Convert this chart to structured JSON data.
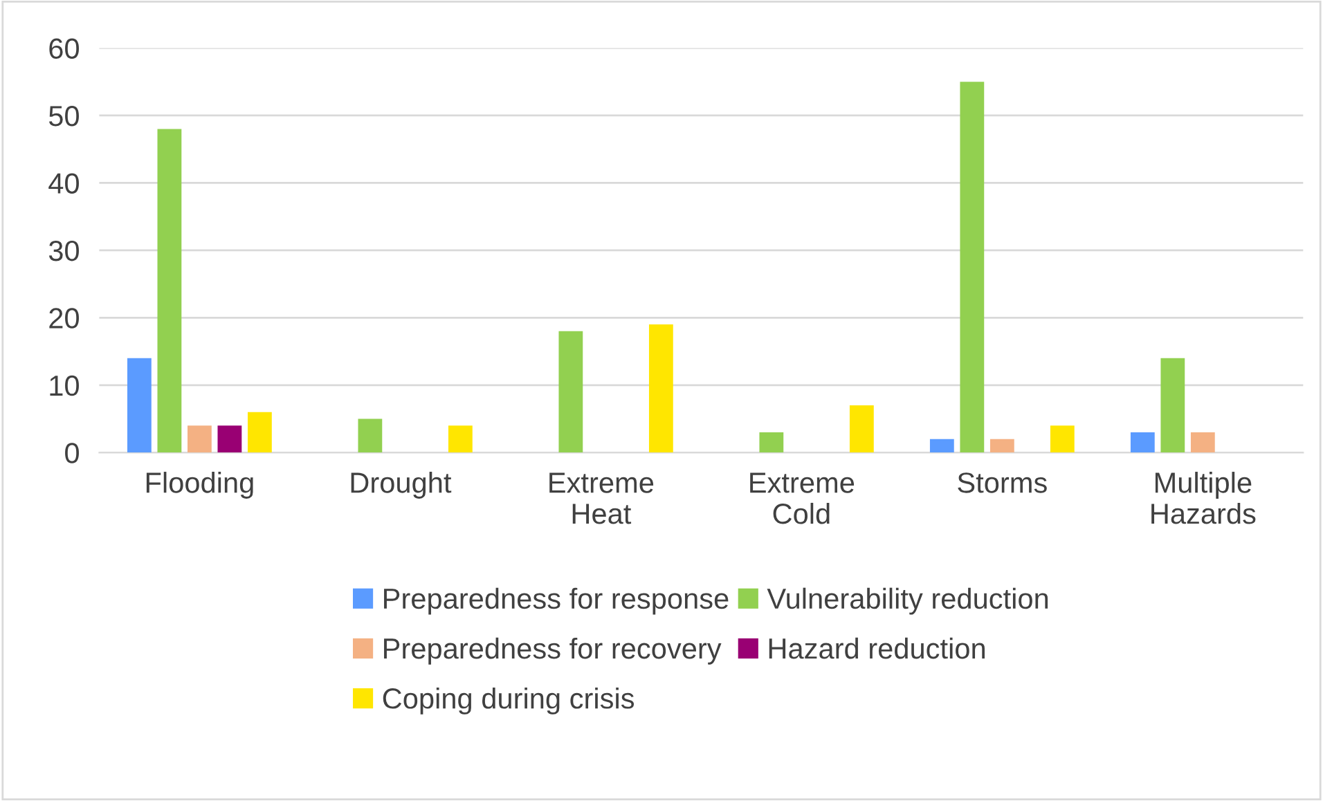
{
  "chart_data": {
    "type": "bar",
    "categories": [
      "Flooding",
      "Drought",
      "Extreme Heat",
      "Extreme Cold",
      "Storms",
      "Multiple Hazards"
    ],
    "series": [
      {
        "name": "Preparedness for response",
        "color": "#5b9bff",
        "values": [
          14,
          0,
          0,
          0,
          2,
          3
        ]
      },
      {
        "name": "Vulnerability reduction",
        "color": "#92d050",
        "values": [
          48,
          5,
          18,
          3,
          55,
          14
        ]
      },
      {
        "name": "Preparedness for recovery",
        "color": "#f4b183",
        "values": [
          4,
          0,
          0,
          0,
          2,
          3
        ]
      },
      {
        "name": "Hazard reduction",
        "color": "#990073",
        "values": [
          4,
          0,
          0,
          0,
          0,
          0
        ]
      },
      {
        "name": "Coping during crisis",
        "color": "#ffe600",
        "values": [
          6,
          4,
          19,
          7,
          4,
          0
        ]
      }
    ],
    "ylim": [
      0,
      60
    ],
    "yticks": [
      0,
      10,
      20,
      30,
      40,
      50,
      60
    ],
    "grid": "y",
    "legend": "bottom"
  }
}
